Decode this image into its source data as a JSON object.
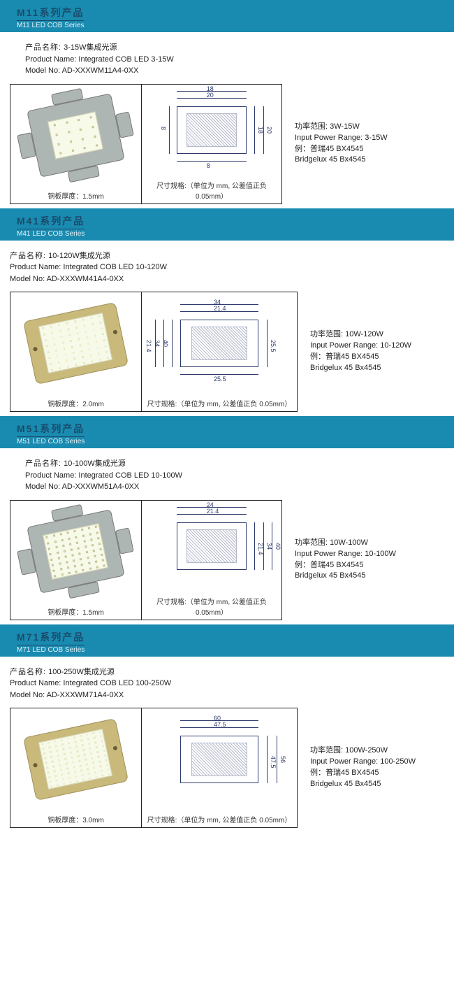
{
  "colors": {
    "banner_bg": "#1a8bb0",
    "banner_title": "#0d3a55",
    "banner_sub": "#dff0f6",
    "draw_line": "#2d3a6b",
    "meta_text": "#222222"
  },
  "sections": [
    {
      "series_code": "M11",
      "title_cn_suffix": "系列产品",
      "title_en": "M11 LED COB Series",
      "meta": {
        "name_cn_label": "产品名称:",
        "name_cn": "3-15W集成光源",
        "name_en_label": "Product Name:",
        "name_en": "Integrated COB LED 3-15W",
        "model_label": "Model No:",
        "model": "AD-XXXWM11A4-0XX"
      },
      "photo": {
        "size": [
          188,
          170
        ],
        "caption": "铜板厚度：1.5mm",
        "type": "square_tab"
      },
      "drawing": {
        "size": [
          200,
          170
        ],
        "caption": "尺寸规格:（单位为 mm, 公差值正负 0.05mm）",
        "dims_top": [
          "18",
          "20"
        ],
        "dims_right": [
          "18",
          "20"
        ],
        "dims_left": "8",
        "dims_bottom": "8"
      },
      "specs": {
        "power_cn_label": "功率范围:",
        "power_cn": "3W-15W",
        "power_en_label": "Input Power Range:",
        "power_en": "3-15W",
        "ex_cn_label": "例：",
        "ex_cn": "普瑞45 BX4545",
        "ex_en": "Bridgelux 45 Bx4545"
      }
    },
    {
      "series_code": "M41",
      "title_cn_suffix": "系列产品",
      "title_en": "M41 LED COB Series",
      "meta": {
        "name_cn_label": "产品名称:",
        "name_cn": "10-120W集成光源",
        "name_en_label": "Product Name:",
        "name_en": "Integrated COB LED 10-120W",
        "model_label": "Model No:",
        "model": "AD-XXXWM41A4-0XX"
      },
      "photo": {
        "size": [
          188,
          170
        ],
        "caption": "铜板厚度：2.0mm",
        "type": "rect_gold"
      },
      "drawing": {
        "size": [
          222,
          170
        ],
        "caption": "尺寸规格:（单位为 mm, 公差值正负 0.05mm）",
        "dims_top": [
          "34",
          "21.4"
        ],
        "dims_right": [
          "25.5"
        ],
        "dims_left": [
          "40",
          "34",
          "21.4"
        ],
        "dims_bottom": "25.5"
      },
      "specs": {
        "power_cn_label": "功率范围:",
        "power_cn": "10W-120W",
        "power_en_label": "Input Power Range:",
        "power_en": "10-120W",
        "ex_cn_label": "例：",
        "ex_cn": "普瑞45 BX4545",
        "ex_en": "Bridgelux 45 Bx4545"
      }
    },
    {
      "series_code": "M51",
      "title_cn_suffix": "系列产品",
      "title_en": "M51 LED COB Series",
      "meta": {
        "name_cn_label": "产品名称:",
        "name_cn": "10-100W集成光源",
        "name_en_label": "Product Name:",
        "name_en": "Integrated COB LED 10-100W",
        "model_label": "Model No:",
        "model": "AD-XXXWM51A4-0XX"
      },
      "photo": {
        "size": [
          188,
          170
        ],
        "caption": "铜板厚度：1.5mm",
        "type": "square_tab_large"
      },
      "drawing": {
        "size": [
          200,
          170
        ],
        "caption": "尺寸规格:（单位为 mm, 公差值正负 0.05mm）",
        "dims_top": [
          "24",
          "21.4"
        ],
        "dims_right": [
          "21.4",
          "34",
          "40"
        ],
        "dims_left": [],
        "dims_bottom": ""
      },
      "specs": {
        "power_cn_label": "功率范围:",
        "power_cn": "10W-100W",
        "power_en_label": "Input Power Range:",
        "power_en": "10-100W",
        "ex_cn_label": "例：",
        "ex_cn": "普瑞45 BX4545",
        "ex_en": "Bridgelux 45 Bx4545"
      }
    },
    {
      "series_code": "M71",
      "title_cn_suffix": "系列产品",
      "title_en": "M71 LED COB Series",
      "meta": {
        "name_cn_label": "产品名称:",
        "name_cn": "100-250W集成光源",
        "name_en_label": "Product Name:",
        "name_en": "Integrated COB LED 100-250W",
        "model_label": "Model No:",
        "model": "AD-XXXWM71A4-0XX"
      },
      "photo": {
        "size": [
          188,
          170
        ],
        "caption": "铜板厚度：3.0mm",
        "type": "rect_gold_large"
      },
      "drawing": {
        "size": [
          222,
          170
        ],
        "caption": "尺寸规格:（单位为 mm, 公差值正负 0.05mm）",
        "dims_top": [
          "60",
          "47.5"
        ],
        "dims_right": [
          "47.5",
          "56"
        ],
        "dims_left": [],
        "dims_bottom": ""
      },
      "specs": {
        "power_cn_label": "功率范围:",
        "power_cn": "100W-250W",
        "power_en_label": "Input Power Range:",
        "power_en": "100-250W",
        "ex_cn_label": "例：",
        "ex_cn": "普瑞45 BX4545",
        "ex_en": "Bridgelux 45 Bx4545"
      }
    }
  ]
}
